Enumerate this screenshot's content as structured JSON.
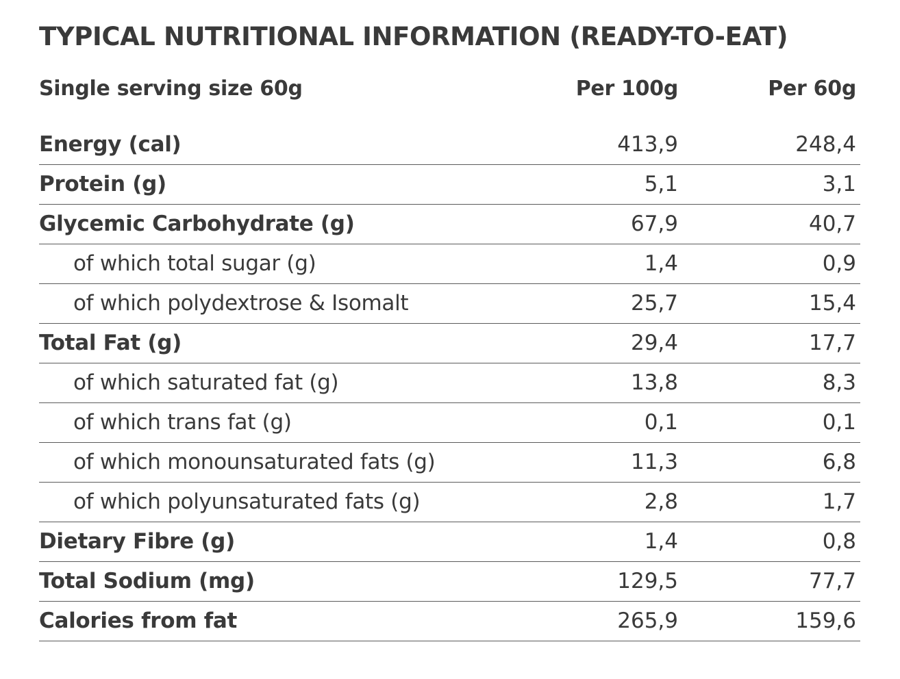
{
  "title": "TYPICAL NUTRITIONAL INFORMATION (READY-TO-EAT)",
  "header": {
    "serving_label": "Single serving size 60g",
    "col1": "Per 100g",
    "col2": "Per 60g"
  },
  "rows": [
    {
      "name": "Energy (cal)",
      "per100": "413,9",
      "per60": "248,4",
      "level": "main"
    },
    {
      "name": "Protein (g)",
      "per100": "5,1",
      "per60": "3,1",
      "level": "main"
    },
    {
      "name": "Glycemic Carbohydrate (g)",
      "per100": "67,9",
      "per60": "40,7",
      "level": "main"
    },
    {
      "name": "of which total sugar (g)",
      "per100": "1,4",
      "per60": "0,9",
      "level": "sub"
    },
    {
      "name": "of which polydextrose & Isomalt",
      "per100": "25,7",
      "per60": "15,4",
      "level": "sub"
    },
    {
      "name": "Total Fat (g)",
      "per100": "29,4",
      "per60": "17,7",
      "level": "main"
    },
    {
      "name": "of which saturated fat (g)",
      "per100": "13,8",
      "per60": "8,3",
      "level": "sub"
    },
    {
      "name": "of which trans fat (g)",
      "per100": "0,1",
      "per60": "0,1",
      "level": "sub"
    },
    {
      "name": "of which monounsaturated fats (g)",
      "per100": "11,3",
      "per60": "6,8",
      "level": "sub"
    },
    {
      "name": "of which polyunsaturated fats (g)",
      "per100": "2,8",
      "per60": "1,7",
      "level": "sub"
    },
    {
      "name": "Dietary Fibre (g)",
      "per100": "1,4",
      "per60": "0,8",
      "level": "main"
    },
    {
      "name": "Total Sodium (mg)",
      "per100": "129,5",
      "per60": "77,7",
      "level": "main"
    },
    {
      "name": "Calories from fat",
      "per100": "265,9",
      "per60": "159,6",
      "level": "main"
    }
  ],
  "colors": {
    "text": "#3a3a3a",
    "rule": "#5a5a5a",
    "background": "#ffffff"
  }
}
